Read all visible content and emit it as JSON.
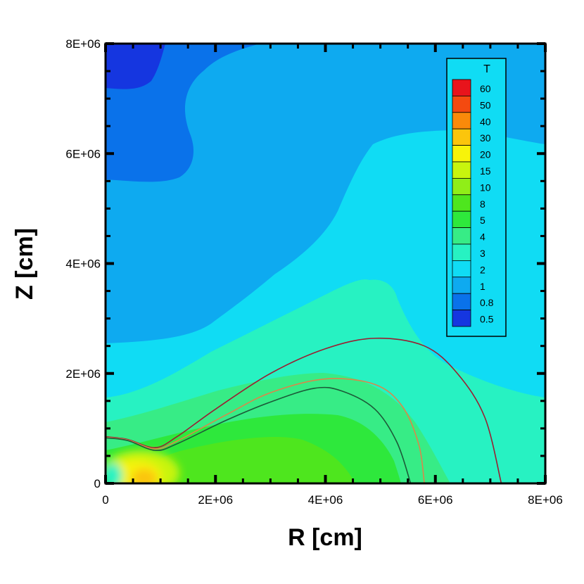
{
  "chart_data": {
    "type": "contour",
    "title": "",
    "xlabel": "R [cm]",
    "ylabel": "Z [cm]",
    "xlim": [
      0,
      8000000
    ],
    "ylim": [
      0,
      8000000
    ],
    "x_ticks": [
      {
        "value": 0,
        "label": "0"
      },
      {
        "value": 2000000,
        "label": "2E+06"
      },
      {
        "value": 4000000,
        "label": "4E+06"
      },
      {
        "value": 6000000,
        "label": "6E+06"
      },
      {
        "value": 8000000,
        "label": "8E+06"
      }
    ],
    "y_ticks": [
      {
        "value": 0,
        "label": "0"
      },
      {
        "value": 2000000,
        "label": "2E+06"
      },
      {
        "value": 4000000,
        "label": "4E+06"
      },
      {
        "value": 6000000,
        "label": "6E+06"
      },
      {
        "value": 8000000,
        "label": "8E+06"
      }
    ],
    "colorbar": {
      "title": "T",
      "placement": "top-right",
      "levels": [
        {
          "label": "60",
          "color": "#e8141c"
        },
        {
          "label": "50",
          "color": "#f44a10"
        },
        {
          "label": "40",
          "color": "#f98a0a"
        },
        {
          "label": "30",
          "color": "#fbc50c"
        },
        {
          "label": "20",
          "color": "#f7f30a"
        },
        {
          "label": "15",
          "color": "#c8f40e"
        },
        {
          "label": "10",
          "color": "#90ee18"
        },
        {
          "label": "8",
          "color": "#4ee61e"
        },
        {
          "label": "5",
          "color": "#2ee83c"
        },
        {
          "label": "4",
          "color": "#37ec86"
        },
        {
          "label": "3",
          "color": "#27f2c2"
        },
        {
          "label": "2",
          "color": "#10dcf4"
        },
        {
          "label": "1",
          "color": "#0eaaf0"
        },
        {
          "label": "0.8",
          "color": "#0a72ea"
        },
        {
          "label": "0.5",
          "color": "#1536e0"
        }
      ]
    },
    "contour_lines": [
      {
        "color": "#9a1e32",
        "points": [
          [
            0,
            850000
          ],
          [
            400000,
            800000
          ],
          [
            900000,
            650000
          ],
          [
            1300000,
            850000
          ],
          [
            2000000,
            1350000
          ],
          [
            3000000,
            2000000
          ],
          [
            4000000,
            2450000
          ],
          [
            4900000,
            2640000
          ],
          [
            5800000,
            2500000
          ],
          [
            6400000,
            2000000
          ],
          [
            6900000,
            1200000
          ],
          [
            7200000,
            0
          ]
        ]
      },
      {
        "color": "#d8884a",
        "points": [
          [
            0,
            840000
          ],
          [
            400000,
            790000
          ],
          [
            900000,
            630000
          ],
          [
            1300000,
            770000
          ],
          [
            2200000,
            1250000
          ],
          [
            3000000,
            1650000
          ],
          [
            4000000,
            1900000
          ],
          [
            4900000,
            1800000
          ],
          [
            5400000,
            1400000
          ],
          [
            5700000,
            700000
          ],
          [
            5800000,
            0
          ]
        ]
      },
      {
        "color": "#1c5a38",
        "points": [
          [
            0,
            830000
          ],
          [
            400000,
            780000
          ],
          [
            900000,
            600000
          ],
          [
            1300000,
            720000
          ],
          [
            2200000,
            1150000
          ],
          [
            3000000,
            1480000
          ],
          [
            3800000,
            1730000
          ],
          [
            4300000,
            1680000
          ],
          [
            4900000,
            1350000
          ],
          [
            5300000,
            750000
          ],
          [
            5550000,
            0
          ]
        ]
      }
    ]
  }
}
